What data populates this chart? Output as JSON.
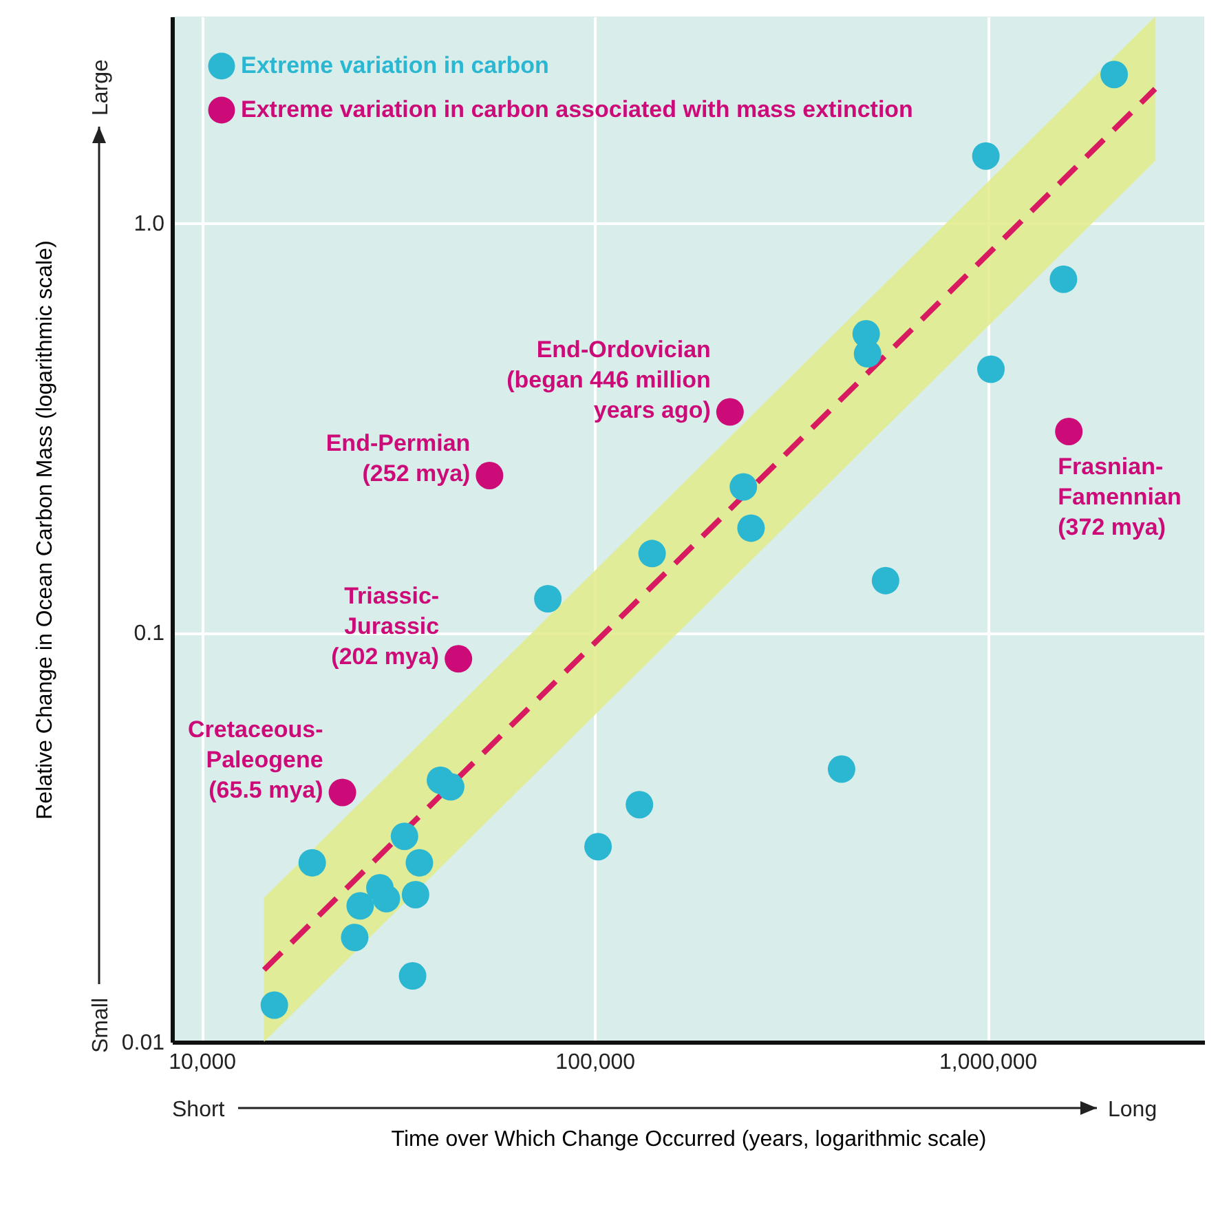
{
  "chart_data": {
    "type": "scatter",
    "xlabel": "Time over Which Change Occurred (years, logarithmic scale)",
    "ylabel": "Relative Change in Ocean Carbon Mass (logarithmic scale)",
    "xlim": [
      8400,
      3560000
    ],
    "ylim": [
      0.01,
      3.2
    ],
    "xticks": [
      {
        "value": 10000,
        "label": "10,000"
      },
      {
        "value": 100000,
        "label": "100,000"
      },
      {
        "value": 1000000,
        "label": "1,000,000"
      }
    ],
    "yticks": [
      0.01,
      0.1,
      {
        "value": 1,
        "label": "1.0"
      }
    ],
    "log": "xy",
    "grid": true,
    "legend": "top left",
    "marker": "circle",
    "line_style": "dashed",
    "series": [
      {
        "name": "Extreme variation in carbon",
        "color": "#2bb7d1",
        "x": [
          2100000,
          990000,
          1560000,
          1020000,
          491000,
          495000,
          239000,
          250000,
          140000,
          550000,
          76000,
          425000,
          130000,
          102000,
          40500,
          43000,
          32800,
          35800,
          35000,
          28400,
          29500,
          25300,
          19100,
          24500,
          34400,
          15300
        ],
        "values": [
          2.31,
          1.46,
          0.73,
          0.44,
          0.537,
          0.48,
          0.227,
          0.18,
          0.156,
          0.134,
          0.121,
          0.0464,
          0.038,
          0.03,
          0.0436,
          0.042,
          0.0318,
          0.0274,
          0.0229,
          0.0238,
          0.0224,
          0.0215,
          0.0274,
          0.018,
          0.0145,
          0.0123
        ]
      },
      {
        "name": "Extreme variation in carbon associated with mass extinction",
        "color": "#cc0b79",
        "x": [
          22800,
          45000,
          54000,
          221000,
          1610000
        ],
        "values": [
          0.0407,
          0.0863,
          0.242,
          0.346,
          0.31
        ]
      },
      {
        "type": "line",
        "marker": "none",
        "color": "#d81b60",
        "x": [
          14400,
          2670000
        ],
        "values": [
          0.015,
          2.13
        ],
        "lower": [
          0.01,
          1.42
        ],
        "upper": [
          0.0225,
          3.2
        ]
      }
    ],
    "annotations": [
      "Short",
      "Long",
      "Small",
      "Large",
      {
        "text": "Cretaceous-\nPaleogene\n(65.5 mya)",
        "x": 22800,
        "y": 0.0407
      },
      {
        "text": "Triassic-\nJurassic\n(202 mya)",
        "x": 45000,
        "y": 0.0863
      },
      {
        "text": "End-Permian\n(252 mya)",
        "x": 54000,
        "y": 0.242
      },
      {
        "text": "End-Ordovician\n(began 446 million\nyears ago)",
        "x": 221000,
        "y": 0.346
      },
      {
        "text": "Frasnian-\nFamennian\n(372 mya)",
        "x": 1610000,
        "y": 0.31
      }
    ]
  }
}
